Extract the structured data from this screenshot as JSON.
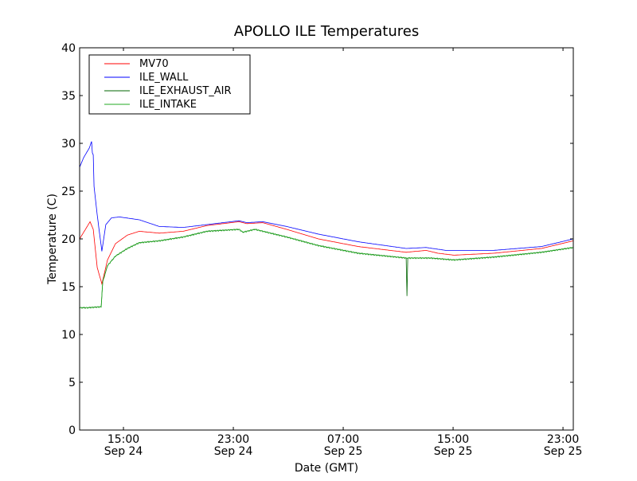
{
  "chart_data": {
    "type": "line",
    "title": "APOLLO ILE Temperatures",
    "xlabel": "Date (GMT)",
    "ylabel": "Temperature (C)",
    "x_units": "hours since Sep 24 00:00 GMT",
    "xlim": [
      11.81,
      47.75
    ],
    "ylim": [
      0,
      40
    ],
    "yticks": [
      0,
      5,
      10,
      15,
      20,
      25,
      30,
      35,
      40
    ],
    "xticks": [
      {
        "value": 15,
        "time": "15:00",
        "date": "Sep 24"
      },
      {
        "value": 23,
        "time": "23:00",
        "date": "Sep 24"
      },
      {
        "value": 31,
        "time": "07:00",
        "date": "Sep 25"
      },
      {
        "value": 39,
        "time": "15:00",
        "date": "Sep 25"
      },
      {
        "value": 47,
        "time": "23:00",
        "date": "Sep 25"
      }
    ],
    "grid": false,
    "legend_position": "top-left",
    "series": [
      {
        "name": "MV70",
        "color": "#ff0000",
        "x": [
          11.81,
          12.57,
          12.8,
          13.09,
          13.43,
          13.84,
          14.42,
          15.29,
          16.16,
          17.61,
          19.35,
          21.09,
          23.41,
          23.99,
          25.14,
          26.88,
          29.2,
          32.1,
          35.58,
          37.03,
          37.9,
          39.06,
          41.96,
          45.43,
          47.75
        ],
        "y": [
          20.0,
          21.8,
          21.0,
          17.0,
          15.3,
          17.8,
          19.5,
          20.4,
          20.8,
          20.6,
          20.8,
          21.4,
          21.8,
          21.6,
          21.7,
          21.0,
          20.0,
          19.2,
          18.6,
          18.8,
          18.5,
          18.3,
          18.5,
          19.0,
          19.8
        ]
      },
      {
        "name": "ILE_WALL",
        "color": "#0000ff",
        "x": [
          11.81,
          12.1,
          12.51,
          12.68,
          12.74,
          12.8,
          12.86,
          13.09,
          13.43,
          13.72,
          14.13,
          14.71,
          16.16,
          17.61,
          19.35,
          21.09,
          23.41,
          23.99,
          25.14,
          26.88,
          29.2,
          32.1,
          35.58,
          37.03,
          38.48,
          41.96,
          45.43,
          47.75
        ],
        "y": [
          27.5,
          28.5,
          29.5,
          30.2,
          29.0,
          28.8,
          25.5,
          22.5,
          18.7,
          21.5,
          22.2,
          22.3,
          22.0,
          21.3,
          21.2,
          21.5,
          21.9,
          21.7,
          21.8,
          21.3,
          20.5,
          19.7,
          19.0,
          19.1,
          18.8,
          18.8,
          19.2,
          20.0
        ]
      },
      {
        "name": "ILE_EXHAUST_AIR",
        "color": "#006400",
        "x": [
          11.81,
          12.39,
          13.38,
          13.49,
          13.84,
          14.42,
          15.29,
          16.16,
          17.61,
          19.35,
          21.09,
          23.41,
          23.7,
          24.57,
          26.88,
          29.2,
          32.1,
          35.58,
          35.64,
          35.7,
          37.32,
          39.06,
          41.96,
          45.43,
          47.75
        ],
        "y": [
          12.8,
          12.8,
          12.9,
          15.5,
          17.2,
          18.2,
          19.0,
          19.6,
          19.8,
          20.2,
          20.8,
          21.0,
          20.7,
          21.0,
          20.2,
          19.3,
          18.5,
          18.0,
          14.0,
          18.0,
          18.0,
          17.8,
          18.1,
          18.6,
          19.1
        ]
      },
      {
        "name": "ILE_INTAKE",
        "color": "#22aa22",
        "x": [
          11.81,
          12.39,
          13.38,
          13.49,
          13.84,
          14.42,
          15.29,
          16.16,
          17.61,
          19.35,
          21.09,
          23.41,
          23.7,
          24.57,
          26.88,
          29.2,
          32.1,
          35.58,
          37.32,
          39.06,
          41.96,
          45.43,
          47.75
        ],
        "y": [
          12.8,
          12.8,
          12.9,
          15.5,
          17.2,
          18.2,
          19.0,
          19.6,
          19.8,
          20.2,
          20.8,
          21.0,
          20.7,
          21.0,
          20.2,
          19.3,
          18.5,
          18.0,
          18.0,
          17.8,
          18.1,
          18.6,
          19.1
        ]
      }
    ]
  }
}
